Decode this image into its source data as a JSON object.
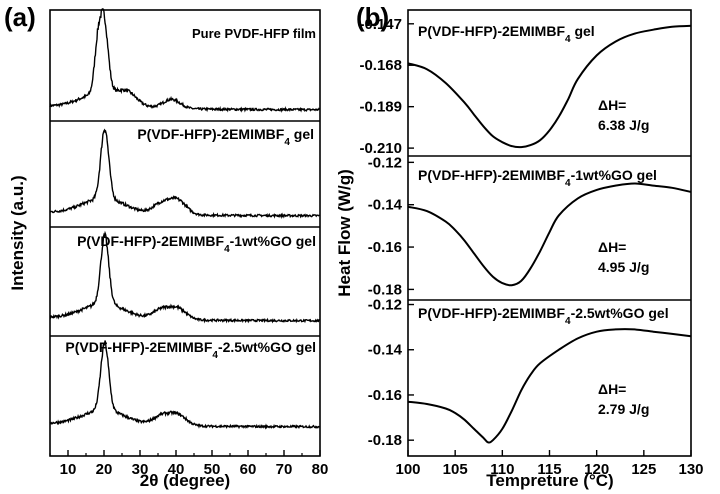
{
  "panel_labels": [
    "(a)",
    "(b)"
  ],
  "chart_data": [
    {
      "type": "line",
      "panel": "(a)",
      "xlabel": "2θ (degree)",
      "ylabel": "Intensity (a.u.)",
      "xlim": [
        5,
        80
      ],
      "xticks": [
        10,
        20,
        30,
        40,
        50,
        60,
        70,
        80
      ],
      "stacked": true,
      "series": [
        {
          "name": "Pure PVDF-HFP film",
          "peaks": [
            {
              "x": 18.2,
              "h": 0.58
            },
            {
              "x": 20.0,
              "h": 1.0
            },
            {
              "x": 26.6,
              "h": 0.12
            },
            {
              "x": 38.8,
              "h": 0.13
            }
          ]
        },
        {
          "name": "P(VDF-HFP)-2EMIMBF4 gel",
          "peaks": [
            {
              "x": 20.2,
              "h": 1.0
            },
            {
              "x": 36.0,
              "h": 0.15
            },
            {
              "x": 40.5,
              "h": 0.2
            }
          ]
        },
        {
          "name": "P(VDF-HFP)-2EMIMBF4-1wt%GO gel",
          "peaks": [
            {
              "x": 20.2,
              "h": 1.0
            },
            {
              "x": 36.0,
              "h": 0.14
            },
            {
              "x": 40.5,
              "h": 0.16
            }
          ]
        },
        {
          "name": "P(VDF-HFP)-2EMIMBF4-2.5wt%GO gel",
          "peaks": [
            {
              "x": 20.2,
              "h": 1.0
            },
            {
              "x": 36.0,
              "h": 0.14
            },
            {
              "x": 40.5,
              "h": 0.16
            }
          ]
        }
      ]
    },
    {
      "type": "line",
      "panel": "(b)",
      "xlabel": "Tempreture (°C)",
      "ylabel": "Heat Flow (W/g)",
      "xlim": [
        100,
        130
      ],
      "xticks": [
        100,
        105,
        110,
        115,
        120,
        125,
        130
      ],
      "stacked": true,
      "series": [
        {
          "name": "P(VDF-HFP)-2EMIMBF4 gel",
          "ylim": [
            -0.214,
            -0.14
          ],
          "yticks": [
            -0.147,
            -0.168,
            -0.189,
            -0.21
          ],
          "annotation": {
            "line1": "ΔH=",
            "line2": "6.38 J/g"
          },
          "x": [
            100,
            102,
            104,
            106,
            107,
            108,
            109,
            110,
            111,
            112,
            113,
            114,
            115,
            116,
            117,
            118,
            120,
            122,
            124,
            126,
            128,
            130
          ],
          "y": [
            -0.167,
            -0.17,
            -0.177,
            -0.187,
            -0.193,
            -0.199,
            -0.204,
            -0.207,
            -0.209,
            -0.2095,
            -0.2085,
            -0.206,
            -0.201,
            -0.194,
            -0.185,
            -0.175,
            -0.163,
            -0.156,
            -0.152,
            -0.15,
            -0.1485,
            -0.148
          ]
        },
        {
          "name": "P(VDF-HFP)-2EMIMBF4-1wt%GO gel",
          "ylim": [
            -0.185,
            -0.117
          ],
          "yticks": [
            -0.12,
            -0.14,
            -0.16,
            -0.18
          ],
          "annotation": {
            "line1": "ΔH=",
            "line2": "4.95 J/g"
          },
          "x": [
            100,
            102,
            104,
            105,
            106,
            107,
            108,
            109,
            110,
            111,
            112,
            113,
            114,
            115,
            116,
            118,
            120,
            122,
            124,
            126,
            128,
            130
          ],
          "y": [
            -0.141,
            -0.143,
            -0.148,
            -0.152,
            -0.157,
            -0.163,
            -0.169,
            -0.174,
            -0.177,
            -0.178,
            -0.176,
            -0.17,
            -0.162,
            -0.153,
            -0.145,
            -0.137,
            -0.133,
            -0.131,
            -0.13,
            -0.131,
            -0.132,
            -0.134
          ]
        },
        {
          "name": "P(VDF-HFP)-2EMIMBF4-2.5wt%GO gel",
          "ylim": [
            -0.187,
            -0.118
          ],
          "yticks": [
            -0.12,
            -0.14,
            -0.16,
            -0.18
          ],
          "annotation": {
            "line1": "ΔH=",
            "line2": "2.79 J/g"
          },
          "x": [
            100,
            102,
            104,
            105,
            106,
            107,
            108,
            108.5,
            109,
            110,
            111,
            112,
            113,
            114,
            116,
            118,
            120,
            122,
            124,
            126,
            128,
            130
          ],
          "y": [
            -0.163,
            -0.164,
            -0.166,
            -0.168,
            -0.171,
            -0.175,
            -0.179,
            -0.181,
            -0.18,
            -0.175,
            -0.167,
            -0.158,
            -0.151,
            -0.146,
            -0.14,
            -0.135,
            -0.132,
            -0.131,
            -0.131,
            -0.132,
            -0.133,
            -0.134
          ]
        }
      ]
    }
  ]
}
